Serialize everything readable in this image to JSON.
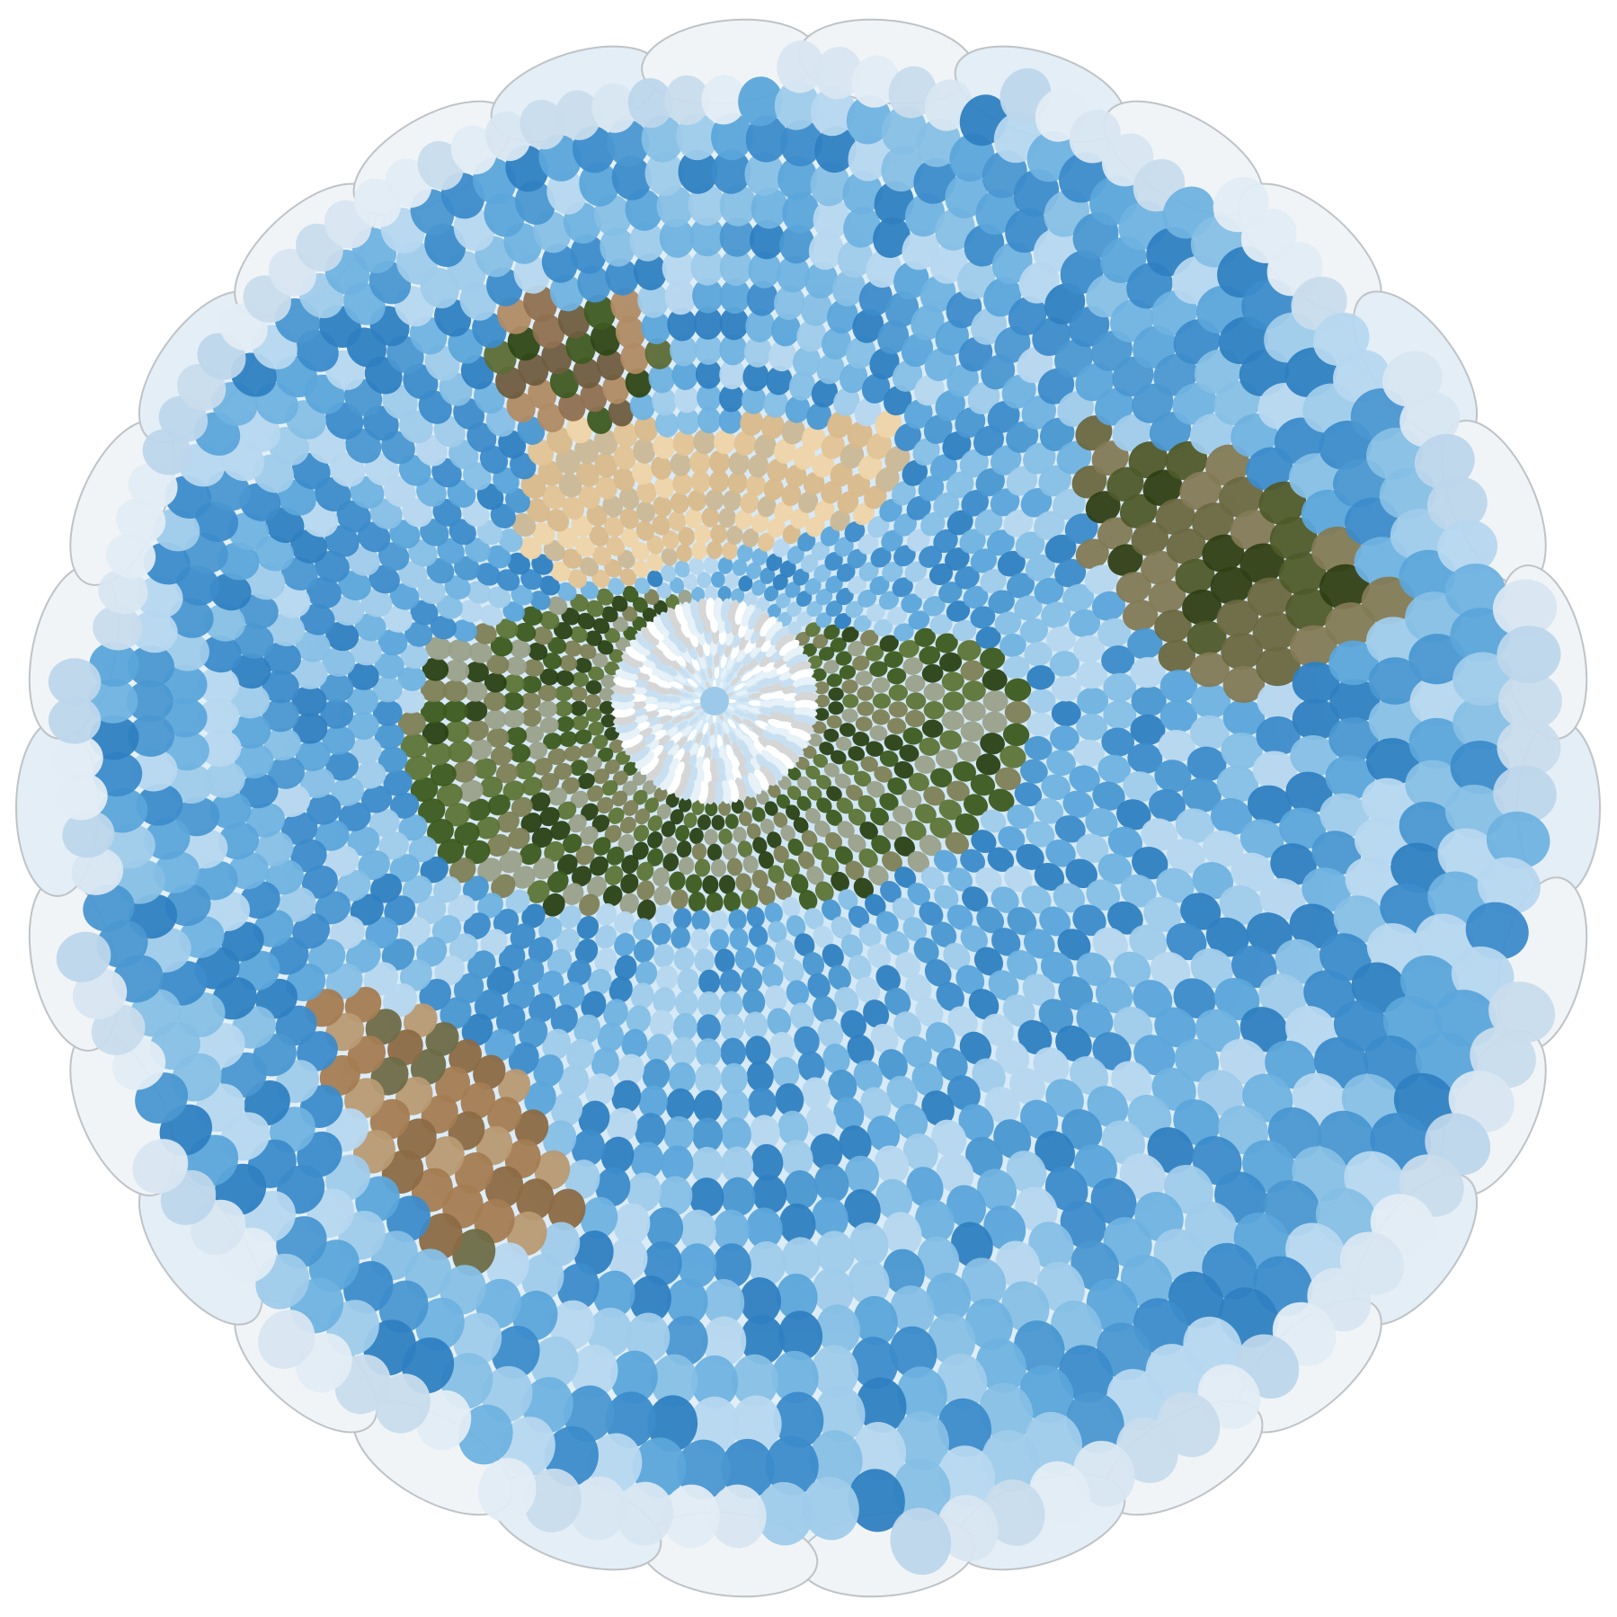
{
  "image": {
    "subject": "mosaic-globe",
    "palette": {
      "background": "#ffffff",
      "rim": "#f1f4f7",
      "rim_stroke": "#bfc3c7",
      "ocean_light": "#b9d8ee",
      "ocean_mid": "#6eb0de",
      "ocean_deep": "#2f7fc1",
      "land_green": "#3d5a1f",
      "land_olive": "#6d6b45",
      "land_brown": "#8c6a45",
      "land_sand": "#e1c497",
      "land_grey": "#a9ab9c",
      "ice": "#dfeef8"
    },
    "regions": [
      {
        "name": "north-continent",
        "type": "land",
        "palette": [
          "#8f7050",
          "#6f5d3f",
          "#3f5a22",
          "#2f4716",
          "#5c6b36",
          "#b08b64"
        ]
      },
      {
        "name": "desert-belt",
        "type": "land",
        "palette": [
          "#e3c493",
          "#d9b98a",
          "#cbb896",
          "#efd4a6"
        ]
      },
      {
        "name": "central-continent",
        "type": "land",
        "palette": [
          "#3c5a1e",
          "#2a4014",
          "#5d7436",
          "#7d7f55",
          "#9aa08a"
        ]
      },
      {
        "name": "east-continent",
        "type": "land",
        "palette": [
          "#303f14",
          "#4f5a2a",
          "#6a6840",
          "#837a55"
        ]
      },
      {
        "name": "south-continent",
        "type": "land",
        "palette": [
          "#8c6a45",
          "#a47c52",
          "#6e6b47",
          "#b89a73"
        ]
      },
      {
        "name": "polar-cap",
        "type": "ice",
        "palette": [
          "#ffffff",
          "#e6f1f8",
          "#c7dff0",
          "#d6d6d6"
        ]
      }
    ]
  }
}
